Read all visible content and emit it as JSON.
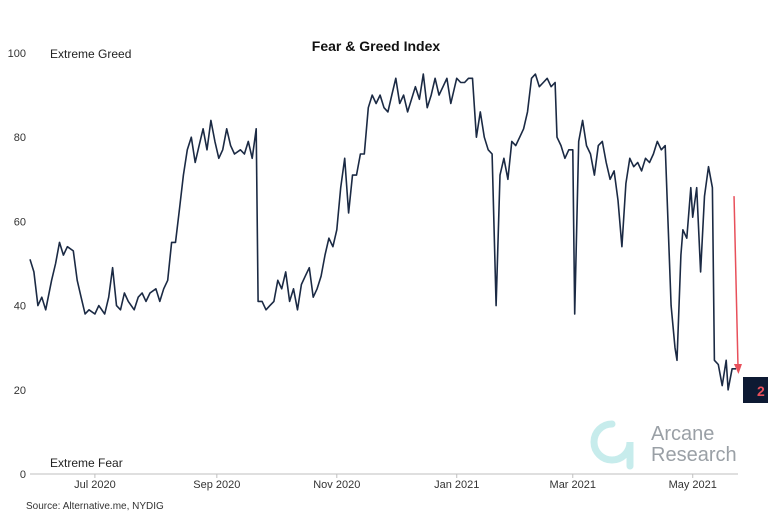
{
  "chart_data": {
    "type": "line",
    "title": "Fear & Greed Index",
    "ylim": [
      0,
      100
    ],
    "y_ticks": [
      "0",
      "20",
      "40",
      "60",
      "80",
      "100"
    ],
    "y_tick_values": [
      0,
      20,
      40,
      60,
      80,
      100
    ],
    "x_tick_labels": [
      "Jul 2020",
      "Sep 2020",
      "Nov 2020",
      "Jan 2021",
      "Mar 2021",
      "May 2021"
    ],
    "x_tick_dates": [
      "2020-07-01",
      "2020-09-01",
      "2020-11-01",
      "2021-01-01",
      "2021-03-01",
      "2021-05-01"
    ],
    "x_range": [
      "2020-05-29",
      "2021-05-23"
    ],
    "grid": false,
    "zone_top": "Extreme Greed",
    "zone_bottom": "Extreme Fear",
    "series_color": "#1b2a44",
    "series": [
      {
        "values": [
          [
            "2020-05-29",
            51
          ],
          [
            "2020-05-31",
            48
          ],
          [
            "2020-06-02",
            40
          ],
          [
            "2020-06-04",
            42
          ],
          [
            "2020-06-06",
            39
          ],
          [
            "2020-06-09",
            46
          ],
          [
            "2020-06-11",
            50
          ],
          [
            "2020-06-13",
            55
          ],
          [
            "2020-06-15",
            52
          ],
          [
            "2020-06-17",
            54
          ],
          [
            "2020-06-20",
            53
          ],
          [
            "2020-06-22",
            46
          ],
          [
            "2020-06-24",
            42
          ],
          [
            "2020-06-26",
            38
          ],
          [
            "2020-06-28",
            39
          ],
          [
            "2020-07-01",
            38
          ],
          [
            "2020-07-03",
            40
          ],
          [
            "2020-07-06",
            38
          ],
          [
            "2020-07-08",
            42
          ],
          [
            "2020-07-10",
            49
          ],
          [
            "2020-07-12",
            40
          ],
          [
            "2020-07-14",
            39
          ],
          [
            "2020-07-16",
            43
          ],
          [
            "2020-07-18",
            41
          ],
          [
            "2020-07-21",
            39
          ],
          [
            "2020-07-23",
            42
          ],
          [
            "2020-07-25",
            43
          ],
          [
            "2020-07-27",
            41
          ],
          [
            "2020-07-29",
            43
          ],
          [
            "2020-08-01",
            44
          ],
          [
            "2020-08-03",
            41
          ],
          [
            "2020-08-05",
            44
          ],
          [
            "2020-08-07",
            46
          ],
          [
            "2020-08-09",
            55
          ],
          [
            "2020-08-11",
            55
          ],
          [
            "2020-08-13",
            63
          ],
          [
            "2020-08-15",
            71
          ],
          [
            "2020-08-17",
            77
          ],
          [
            "2020-08-19",
            80
          ],
          [
            "2020-08-21",
            74
          ],
          [
            "2020-08-23",
            78
          ],
          [
            "2020-08-25",
            82
          ],
          [
            "2020-08-27",
            77
          ],
          [
            "2020-08-29",
            84
          ],
          [
            "2020-08-31",
            79
          ],
          [
            "2020-09-02",
            75
          ],
          [
            "2020-09-04",
            77
          ],
          [
            "2020-09-06",
            82
          ],
          [
            "2020-09-08",
            78
          ],
          [
            "2020-09-10",
            76
          ],
          [
            "2020-09-13",
            77
          ],
          [
            "2020-09-15",
            76
          ],
          [
            "2020-09-17",
            79
          ],
          [
            "2020-09-19",
            75
          ],
          [
            "2020-09-21",
            82
          ],
          [
            "2020-09-22",
            41
          ],
          [
            "2020-09-24",
            41
          ],
          [
            "2020-09-26",
            39
          ],
          [
            "2020-09-28",
            40
          ],
          [
            "2020-09-30",
            41
          ],
          [
            "2020-10-02",
            46
          ],
          [
            "2020-10-04",
            44
          ],
          [
            "2020-10-06",
            48
          ],
          [
            "2020-10-08",
            41
          ],
          [
            "2020-10-10",
            44
          ],
          [
            "2020-10-12",
            39
          ],
          [
            "2020-10-14",
            45
          ],
          [
            "2020-10-16",
            47
          ],
          [
            "2020-10-18",
            49
          ],
          [
            "2020-10-20",
            42
          ],
          [
            "2020-10-22",
            44
          ],
          [
            "2020-10-24",
            47
          ],
          [
            "2020-10-26",
            52
          ],
          [
            "2020-10-28",
            56
          ],
          [
            "2020-10-30",
            54
          ],
          [
            "2020-11-01",
            58
          ],
          [
            "2020-11-03",
            68
          ],
          [
            "2020-11-05",
            75
          ],
          [
            "2020-11-07",
            62
          ],
          [
            "2020-11-09",
            71
          ],
          [
            "2020-11-11",
            71
          ],
          [
            "2020-11-13",
            76
          ],
          [
            "2020-11-15",
            76
          ],
          [
            "2020-11-17",
            87
          ],
          [
            "2020-11-19",
            90
          ],
          [
            "2020-11-21",
            88
          ],
          [
            "2020-11-23",
            90
          ],
          [
            "2020-11-25",
            87
          ],
          [
            "2020-11-27",
            86
          ],
          [
            "2020-11-29",
            90
          ],
          [
            "2020-12-01",
            94
          ],
          [
            "2020-12-03",
            88
          ],
          [
            "2020-12-05",
            90
          ],
          [
            "2020-12-07",
            86
          ],
          [
            "2020-12-09",
            89
          ],
          [
            "2020-12-11",
            92
          ],
          [
            "2020-12-13",
            89
          ],
          [
            "2020-12-15",
            95
          ],
          [
            "2020-12-17",
            87
          ],
          [
            "2020-12-19",
            90
          ],
          [
            "2020-12-21",
            94
          ],
          [
            "2020-12-23",
            90
          ],
          [
            "2020-12-25",
            92
          ],
          [
            "2020-12-27",
            94
          ],
          [
            "2020-12-29",
            88
          ],
          [
            "2021-01-01",
            94
          ],
          [
            "2021-01-03",
            93
          ],
          [
            "2021-01-05",
            93
          ],
          [
            "2021-01-07",
            94
          ],
          [
            "2021-01-09",
            94
          ],
          [
            "2021-01-11",
            80
          ],
          [
            "2021-01-13",
            86
          ],
          [
            "2021-01-15",
            80
          ],
          [
            "2021-01-17",
            77
          ],
          [
            "2021-01-19",
            76
          ],
          [
            "2021-01-21",
            40
          ],
          [
            "2021-01-23",
            71
          ],
          [
            "2021-01-25",
            75
          ],
          [
            "2021-01-27",
            70
          ],
          [
            "2021-01-29",
            79
          ],
          [
            "2021-01-31",
            78
          ],
          [
            "2021-02-02",
            80
          ],
          [
            "2021-02-04",
            82
          ],
          [
            "2021-02-06",
            86
          ],
          [
            "2021-02-08",
            94
          ],
          [
            "2021-02-10",
            95
          ],
          [
            "2021-02-12",
            92
          ],
          [
            "2021-02-14",
            93
          ],
          [
            "2021-02-16",
            94
          ],
          [
            "2021-02-18",
            92
          ],
          [
            "2021-02-20",
            93
          ],
          [
            "2021-02-21",
            80
          ],
          [
            "2021-02-23",
            78
          ],
          [
            "2021-02-25",
            75
          ],
          [
            "2021-02-27",
            77
          ],
          [
            "2021-03-01",
            77
          ],
          [
            "2021-03-02",
            38
          ],
          [
            "2021-03-04",
            79
          ],
          [
            "2021-03-06",
            84
          ],
          [
            "2021-03-08",
            78
          ],
          [
            "2021-03-10",
            76
          ],
          [
            "2021-03-12",
            71
          ],
          [
            "2021-03-14",
            78
          ],
          [
            "2021-03-16",
            79
          ],
          [
            "2021-03-18",
            74
          ],
          [
            "2021-03-20",
            70
          ],
          [
            "2021-03-22",
            72
          ],
          [
            "2021-03-24",
            65
          ],
          [
            "2021-03-26",
            54
          ],
          [
            "2021-03-28",
            69
          ],
          [
            "2021-03-30",
            75
          ],
          [
            "2021-04-01",
            73
          ],
          [
            "2021-04-03",
            74
          ],
          [
            "2021-04-05",
            72
          ],
          [
            "2021-04-07",
            75
          ],
          [
            "2021-04-09",
            74
          ],
          [
            "2021-04-11",
            76
          ],
          [
            "2021-04-13",
            79
          ],
          [
            "2021-04-15",
            77
          ],
          [
            "2021-04-17",
            78
          ],
          [
            "2021-04-18",
            65
          ],
          [
            "2021-04-20",
            40
          ],
          [
            "2021-04-22",
            30
          ],
          [
            "2021-04-23",
            27
          ],
          [
            "2021-04-25",
            52
          ],
          [
            "2021-04-26",
            58
          ],
          [
            "2021-04-28",
            56
          ],
          [
            "2021-04-30",
            68
          ],
          [
            "2021-05-01",
            61
          ],
          [
            "2021-05-03",
            68
          ],
          [
            "2021-05-05",
            48
          ],
          [
            "2021-05-07",
            66
          ],
          [
            "2021-05-09",
            73
          ],
          [
            "2021-05-11",
            68
          ],
          [
            "2021-05-12",
            27
          ],
          [
            "2021-05-14",
            26
          ],
          [
            "2021-05-16",
            21
          ],
          [
            "2021-05-18",
            27
          ],
          [
            "2021-05-19",
            20
          ],
          [
            "2021-05-21",
            25
          ],
          [
            "2021-05-23",
            25
          ]
        ]
      }
    ],
    "annotation": {
      "value": "2",
      "box_color": "#0d1a33",
      "arrow_color": "#e8505b",
      "arrow_from": [
        "2021-05-22",
        66
      ],
      "arrow_to": [
        "2021-05-24",
        24
      ]
    }
  },
  "source": "Source: Alternative.me, NYDIG",
  "watermark": {
    "line1": "Arcane",
    "line2": "Research",
    "logo_color": "#c7ecec"
  }
}
